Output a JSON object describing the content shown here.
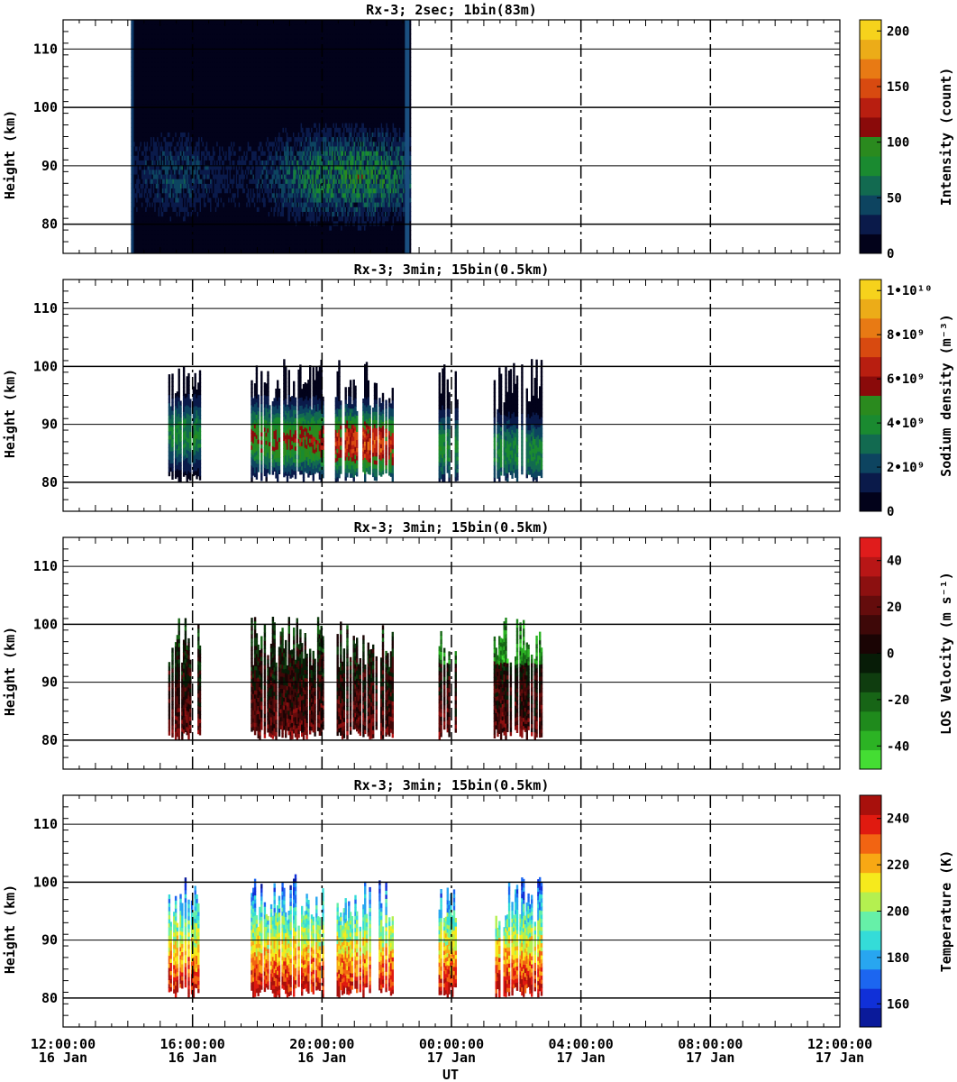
{
  "figure": {
    "xlabel": "UT",
    "x_ticks": [
      {
        "time": "12:00:00",
        "day": "16 Jan"
      },
      {
        "time": "16:00:00",
        "day": "16 Jan"
      },
      {
        "time": "20:00:00",
        "day": "16 Jan"
      },
      {
        "time": "00:00:00",
        "day": "17 Jan"
      },
      {
        "time": "04:00:00",
        "day": "17 Jan"
      },
      {
        "time": "08:00:00",
        "day": "17 Jan"
      },
      {
        "time": "12:00:00",
        "day": "17 Jan"
      }
    ]
  },
  "chart_data": [
    {
      "type": "heatmap",
      "title": "Rx-3;  2sec; 1bin(83m)",
      "ylabel": "Height (km)",
      "xlim": [
        0,
        24
      ],
      "ylim": [
        75,
        115
      ],
      "y_ticks": [
        80,
        90,
        100,
        110
      ],
      "x_unit": "hours since 12:00:00 16 Jan",
      "grid": true,
      "colorbar": {
        "label": "Intensity (count)",
        "ticks": [
          "0",
          "50",
          "100",
          "150",
          "200"
        ],
        "range": [
          0,
          210
        ],
        "colors": [
          "#02021a",
          "#0a1a4a",
          "#0d4460",
          "#126a50",
          "#1a8a30",
          "#2a8a1e",
          "#8a0a0a",
          "#b81e10",
          "#d84a10",
          "#e87a14",
          "#ecac18",
          "#f6d21c"
        ]
      },
      "data_spans": [
        [
          2.1,
          10.7
        ]
      ],
      "data_summary": "low intensity everywhere (mostly 0-40 counts), faint layer 80-97 km with peaks up to ~80 counts near 20-22 UT"
    },
    {
      "type": "heatmap",
      "title": "Rx-3; 3min; 15bin(0.5km)",
      "ylabel": "Height (km)",
      "xlim": [
        0,
        24
      ],
      "ylim": [
        75,
        115
      ],
      "y_ticks": [
        80,
        90,
        100,
        110
      ],
      "grid": true,
      "colorbar": {
        "label": "Sodium density (m⁻³)",
        "ticks": [
          "0",
          "2•10⁹",
          "4•10⁹",
          "6•10⁹",
          "8•10⁹",
          "1•10¹⁰"
        ],
        "range": [
          0,
          10500000000.0
        ],
        "colors": [
          "#02021a",
          "#0a1a4a",
          "#0d4460",
          "#126a50",
          "#1a8a30",
          "#2a8a1e",
          "#8a0a0a",
          "#b81e10",
          "#d84a10",
          "#e87a14",
          "#ecac18",
          "#f6d21c"
        ]
      },
      "data_spans": [
        [
          3.25,
          4.2
        ],
        [
          5.8,
          8.0
        ],
        [
          8.4,
          10.2
        ],
        [
          11.6,
          12.2
        ],
        [
          13.3,
          14.8
        ]
      ],
      "data_summary": "sodium layer roughly 78-101 km, peak density ~6-7e9 m^-3 near 85-88 km between 21 and 23 UT"
    },
    {
      "type": "heatmap",
      "title": "Rx-3; 3min; 15bin(0.5km)",
      "ylabel": "Height (km)",
      "xlim": [
        0,
        24
      ],
      "ylim": [
        75,
        115
      ],
      "y_ticks": [
        80,
        90,
        100,
        110
      ],
      "grid": true,
      "colorbar": {
        "label": "LOS Velocity (m s⁻¹)",
        "ticks": [
          "-40",
          "-20",
          "0",
          "20",
          "40"
        ],
        "range": [
          -50,
          50
        ],
        "colors": [
          "#44dd33",
          "#2cb324",
          "#1f8a1c",
          "#176516",
          "#0f3d0f",
          "#071c07",
          "#1a0404",
          "#3e0808",
          "#640c0c",
          "#8c1010",
          "#b81616",
          "#e01c1c"
        ]
      },
      "data_spans": [
        [
          3.25,
          4.2
        ],
        [
          5.8,
          8.0
        ],
        [
          8.4,
          10.2
        ],
        [
          11.6,
          12.2
        ],
        [
          13.3,
          14.8
        ]
      ],
      "data_summary": "velocities mostly -20 to +30 m/s; positive (red) below ~90 km, negative (green) above ~95 km around 23-24 UT"
    },
    {
      "type": "heatmap",
      "title": "Rx-3; 3min; 15bin(0.5km)",
      "ylabel": "Height (km)",
      "xlim": [
        0,
        24
      ],
      "ylim": [
        75,
        115
      ],
      "y_ticks": [
        80,
        90,
        100,
        110
      ],
      "grid": true,
      "colorbar": {
        "label": "Temperature (K)",
        "ticks": [
          "160",
          "180",
          "200",
          "220",
          "240"
        ],
        "range": [
          150,
          250
        ],
        "colors": [
          "#0a1a9a",
          "#1030d8",
          "#1c66f0",
          "#28a6f0",
          "#34dcd8",
          "#66f0a8",
          "#b4f050",
          "#f6ea1c",
          "#f8a814",
          "#f26412",
          "#e01a10",
          "#a8100c"
        ]
      },
      "data_spans": [
        [
          3.25,
          4.2
        ],
        [
          5.8,
          8.0
        ],
        [
          8.4,
          10.2
        ],
        [
          11.6,
          12.2
        ],
        [
          13.3,
          14.8
        ]
      ],
      "data_summary": "cold (160-180 K) above ~93 km, warm (220-245 K) between 80 and 88 km"
    }
  ]
}
